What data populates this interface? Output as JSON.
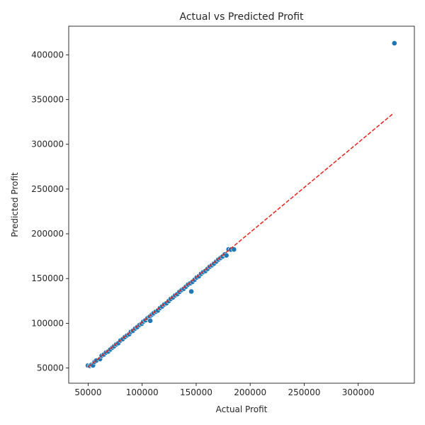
{
  "chart_data": {
    "type": "scatter",
    "title": "Actual vs Predicted Profit",
    "xlabel": "Actual Profit",
    "ylabel": "Predicted Profit",
    "xlim": [
      32000,
      352000
    ],
    "ylim": [
      33000,
      432000
    ],
    "xticks": [
      50000,
      100000,
      150000,
      200000,
      250000,
      300000
    ],
    "yticks": [
      50000,
      100000,
      150000,
      200000,
      250000,
      300000,
      350000,
      400000
    ],
    "grid": false,
    "point_color": "#1f77b4",
    "reference_line": {
      "style": "dashed",
      "color": "#e8211b",
      "from": [
        50000,
        51000
      ],
      "to": [
        333000,
        335000
      ]
    },
    "series": [
      {
        "points": [
          [
            49800,
            52800
          ],
          [
            51500,
            52300
          ],
          [
            53000,
            53500
          ],
          [
            54500,
            52900
          ],
          [
            56000,
            56800
          ],
          [
            57500,
            58300
          ],
          [
            61000,
            60000
          ],
          [
            62500,
            63700
          ],
          [
            64500,
            65100
          ],
          [
            66500,
            67300
          ],
          [
            68500,
            68400
          ],
          [
            70500,
            70700
          ],
          [
            72500,
            72800
          ],
          [
            74000,
            74300
          ],
          [
            76000,
            76400
          ],
          [
            78000,
            77800
          ],
          [
            80000,
            80800
          ],
          [
            82000,
            82300
          ],
          [
            84000,
            84600
          ],
          [
            86000,
            86400
          ],
          [
            88000,
            87800
          ],
          [
            89500,
            90400
          ],
          [
            91500,
            91700
          ],
          [
            93500,
            94100
          ],
          [
            95500,
            95800
          ],
          [
            97500,
            98100
          ],
          [
            99500,
            99400
          ],
          [
            101000,
            101700
          ],
          [
            103000,
            103400
          ],
          [
            105000,
            105700
          ],
          [
            107000,
            107400
          ],
          [
            107500,
            102800
          ],
          [
            109000,
            109600
          ],
          [
            110500,
            111100
          ],
          [
            112500,
            112900
          ],
          [
            114500,
            114200
          ],
          [
            116500,
            117100
          ],
          [
            118500,
            118700
          ],
          [
            120500,
            121100
          ],
          [
            122500,
            122400
          ],
          [
            124500,
            124800
          ],
          [
            126500,
            127300
          ],
          [
            128500,
            128900
          ],
          [
            130500,
            131200
          ],
          [
            132500,
            132600
          ],
          [
            134500,
            135100
          ],
          [
            136500,
            137200
          ],
          [
            138500,
            138500
          ],
          [
            140500,
            140900
          ],
          [
            142500,
            143300
          ],
          [
            144500,
            144800
          ],
          [
            146500,
            146300
          ],
          [
            145500,
            135500
          ],
          [
            148500,
            148700
          ],
          [
            150500,
            151200
          ],
          [
            152500,
            152600
          ],
          [
            154500,
            155300
          ],
          [
            156500,
            157100
          ],
          [
            158500,
            158400
          ],
          [
            160500,
            160800
          ],
          [
            162500,
            163200
          ],
          [
            164500,
            164900
          ],
          [
            166500,
            166600
          ],
          [
            168500,
            168900
          ],
          [
            170500,
            171200
          ],
          [
            172500,
            173000
          ],
          [
            174500,
            174600
          ],
          [
            176500,
            176900
          ],
          [
            178000,
            175800
          ],
          [
            180000,
            182600
          ],
          [
            182000,
            182300
          ],
          [
            185000,
            182500
          ]
        ]
      },
      {
        "points": [
          [
            333500,
            413000
          ]
        ]
      }
    ]
  }
}
